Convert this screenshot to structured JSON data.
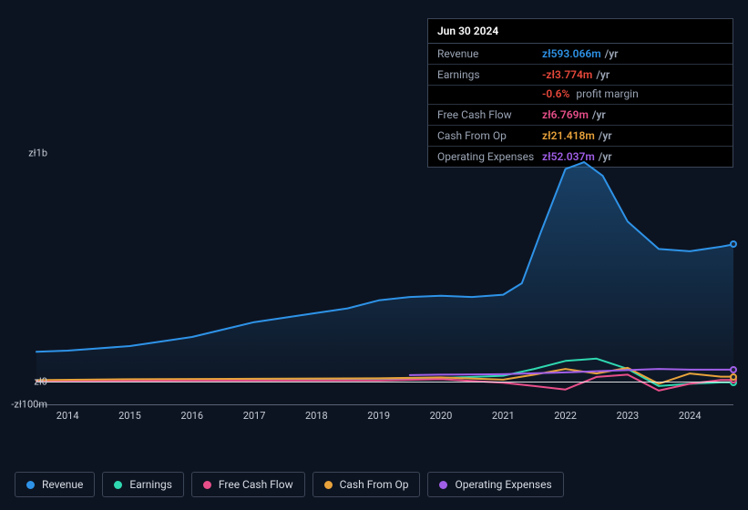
{
  "tooltip": {
    "date": "Jun 30 2024",
    "rows": [
      {
        "label": "Revenue",
        "value": "zł593.066m",
        "suffix": "/yr",
        "color": "#2e93e8"
      },
      {
        "label": "Earnings",
        "value": "-zł3.774m",
        "suffix": "/yr",
        "color": "#e8483b",
        "sub": {
          "value": "-0.6%",
          "suffix": "profit margin",
          "color": "#e8483b"
        }
      },
      {
        "label": "Free Cash Flow",
        "value": "zł6.769m",
        "suffix": "/yr",
        "color": "#e84f8a"
      },
      {
        "label": "Cash From Op",
        "value": "zł21.418m",
        "suffix": "/yr",
        "color": "#e8a23b"
      },
      {
        "label": "Operating Expenses",
        "value": "zł52.037m",
        "suffix": "/yr",
        "color": "#a15fe8"
      }
    ]
  },
  "chart": {
    "type": "line-area",
    "background": "#0d1421",
    "grid_color": "#5a6475",
    "baseline_color": "#ffffff",
    "ylim": [
      -100,
      1000
    ],
    "yticks": [
      {
        "v": 1000,
        "label": "zł1b"
      },
      {
        "v": 0,
        "label": "zł0"
      },
      {
        "v": -100,
        "label": "-zł100m"
      }
    ],
    "xlim": [
      2013.5,
      2024.7
    ],
    "xticks": [
      2014,
      2015,
      2016,
      2017,
      2018,
      2019,
      2020,
      2021,
      2022,
      2023,
      2024
    ],
    "series": [
      {
        "key": "revenue",
        "label": "Revenue",
        "color": "#2e93e8",
        "area": true,
        "width": 2,
        "points": [
          [
            2013.5,
            130
          ],
          [
            2014,
            135
          ],
          [
            2015,
            155
          ],
          [
            2016,
            195
          ],
          [
            2017,
            260
          ],
          [
            2018,
            300
          ],
          [
            2018.5,
            320
          ],
          [
            2019,
            355
          ],
          [
            2019.5,
            370
          ],
          [
            2020,
            375
          ],
          [
            2020.5,
            370
          ],
          [
            2021,
            380
          ],
          [
            2021.3,
            430
          ],
          [
            2021.6,
            650
          ],
          [
            2022,
            930
          ],
          [
            2022.3,
            960
          ],
          [
            2022.6,
            900
          ],
          [
            2023,
            700
          ],
          [
            2023.5,
            580
          ],
          [
            2024,
            570
          ],
          [
            2024.5,
            590
          ],
          [
            2024.7,
            600
          ]
        ]
      },
      {
        "key": "earnings",
        "label": "Earnings",
        "color": "#2fd8b0",
        "width": 2,
        "points": [
          [
            2013.5,
            5
          ],
          [
            2015,
            8
          ],
          [
            2017,
            10
          ],
          [
            2019,
            12
          ],
          [
            2020,
            15
          ],
          [
            2021,
            25
          ],
          [
            2021.5,
            55
          ],
          [
            2022,
            90
          ],
          [
            2022.5,
            100
          ],
          [
            2023,
            55
          ],
          [
            2023.5,
            -20
          ],
          [
            2024,
            -10
          ],
          [
            2024.5,
            -4
          ],
          [
            2024.7,
            -4
          ]
        ]
      },
      {
        "key": "fcf",
        "label": "Free Cash Flow",
        "color": "#e84f8a",
        "width": 2,
        "points": [
          [
            2013.5,
            2
          ],
          [
            2016,
            4
          ],
          [
            2019,
            5
          ],
          [
            2020,
            10
          ],
          [
            2021,
            -5
          ],
          [
            2021.5,
            -20
          ],
          [
            2022,
            -35
          ],
          [
            2022.5,
            20
          ],
          [
            2023,
            30
          ],
          [
            2023.5,
            -40
          ],
          [
            2024,
            -10
          ],
          [
            2024.5,
            7
          ],
          [
            2024.7,
            7
          ]
        ]
      },
      {
        "key": "cfo",
        "label": "Cash From Op",
        "color": "#e8a23b",
        "width": 2,
        "points": [
          [
            2013.5,
            6
          ],
          [
            2015,
            10
          ],
          [
            2017,
            12
          ],
          [
            2019,
            14
          ],
          [
            2020,
            18
          ],
          [
            2021,
            8
          ],
          [
            2021.5,
            30
          ],
          [
            2022,
            55
          ],
          [
            2022.5,
            35
          ],
          [
            2023,
            60
          ],
          [
            2023.5,
            -10
          ],
          [
            2024,
            35
          ],
          [
            2024.5,
            21
          ],
          [
            2024.7,
            21
          ]
        ]
      },
      {
        "key": "opex",
        "label": "Operating Expenses",
        "color": "#a15fe8",
        "width": 2,
        "points": [
          [
            2019.5,
            28
          ],
          [
            2020,
            30
          ],
          [
            2021,
            32
          ],
          [
            2022,
            40
          ],
          [
            2022.5,
            45
          ],
          [
            2023,
            50
          ],
          [
            2023.5,
            55
          ],
          [
            2024,
            52
          ],
          [
            2024.5,
            52
          ],
          [
            2024.7,
            52
          ]
        ]
      }
    ],
    "end_markers": true
  },
  "legend": [
    {
      "key": "revenue",
      "label": "Revenue",
      "color": "#2e93e8"
    },
    {
      "key": "earnings",
      "label": "Earnings",
      "color": "#2fd8b0"
    },
    {
      "key": "fcf",
      "label": "Free Cash Flow",
      "color": "#e84f8a"
    },
    {
      "key": "cfo",
      "label": "Cash From Op",
      "color": "#e8a23b"
    },
    {
      "key": "opex",
      "label": "Operating Expenses",
      "color": "#a15fe8"
    }
  ]
}
